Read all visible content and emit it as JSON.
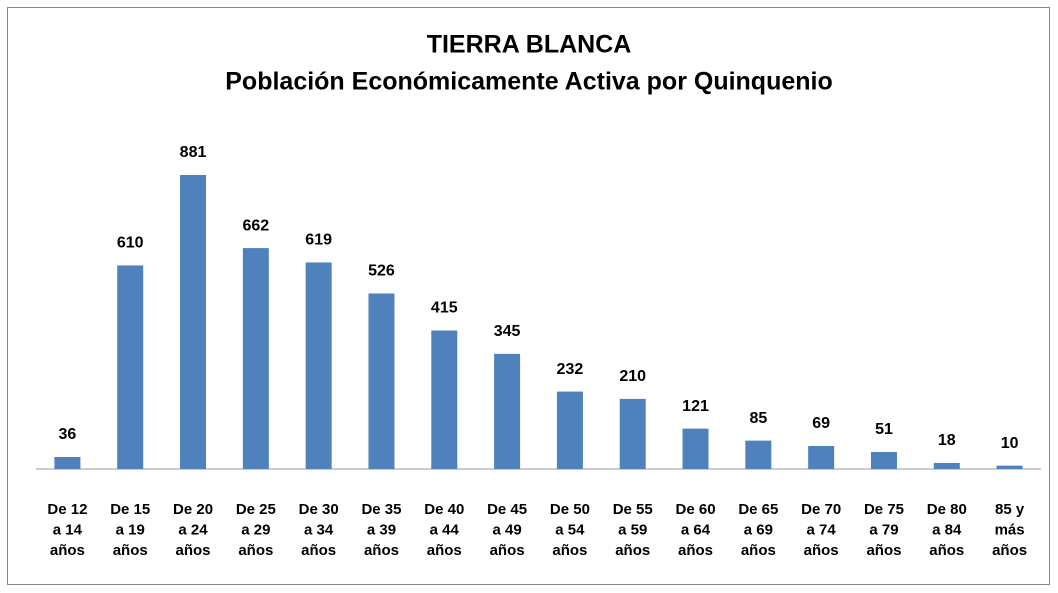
{
  "chart_data": {
    "type": "bar",
    "title": [
      "TIERRA BLANCA",
      "Población Económicamente Activa por Quinquenio"
    ],
    "categories": [
      "De 12 a 14 años",
      "De 15 a 19 años",
      "De 20 a 24 años",
      "De 25 a 29 años",
      "De 30 a 34 años",
      "De 35 a 39 años",
      "De 40 a 44 años",
      "De 45 a 49 años",
      "De 50 a 54 años",
      "De 55 a 59 años",
      "De 60 a 64 años",
      "De 65 a 69 años",
      "De 70 a 74 años",
      "De 75 a 79 años",
      "De 80 a 84 años",
      "85 y más años"
    ],
    "values": [
      36,
      610,
      881,
      662,
      619,
      526,
      415,
      345,
      232,
      210,
      121,
      85,
      69,
      51,
      18,
      10
    ],
    "color": "#4f81bd"
  }
}
